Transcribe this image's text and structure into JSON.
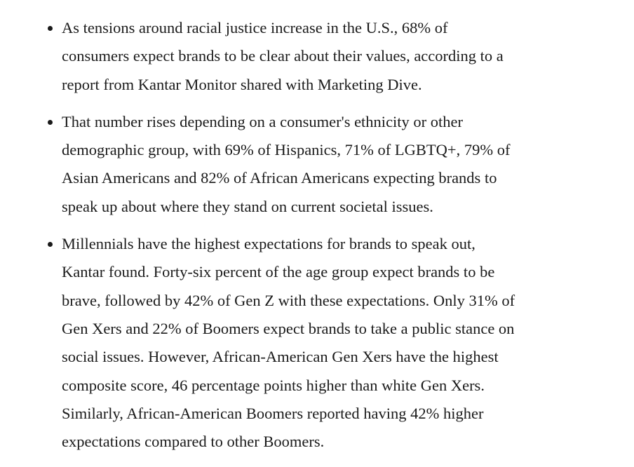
{
  "list": {
    "items": [
      {
        "lines": [
          "As tensions around racial justice increase in the U.S., 68% of",
          "consumers expect brands to be clear about their values, according to a",
          "report from Kantar Monitor shared with Marketing Dive."
        ]
      },
      {
        "lines": [
          "That number rises depending on a consumer's ethnicity or other",
          "demographic group, with 69% of Hispanics, 71% of LGBTQ+, 79% of",
          "Asian Americans and 82% of African Americans expecting brands to",
          "speak up about where they stand on current societal issues."
        ]
      },
      {
        "lines": [
          "Millennials have the highest expectations for brands to speak out,",
          "Kantar found. Forty-six percent of the age group expect brands to be",
          "brave, followed by 42% of Gen Z with these expectations. Only 31% of",
          "Gen Xers and 22% of Boomers expect brands to take a public stance on",
          "social issues. However, African-American Gen Xers have the highest",
          "composite score, 46 percentage points higher than white Gen Xers.",
          "Similarly, African-American Boomers reported having 42% higher",
          "expectations compared to other Boomers."
        ]
      }
    ]
  }
}
